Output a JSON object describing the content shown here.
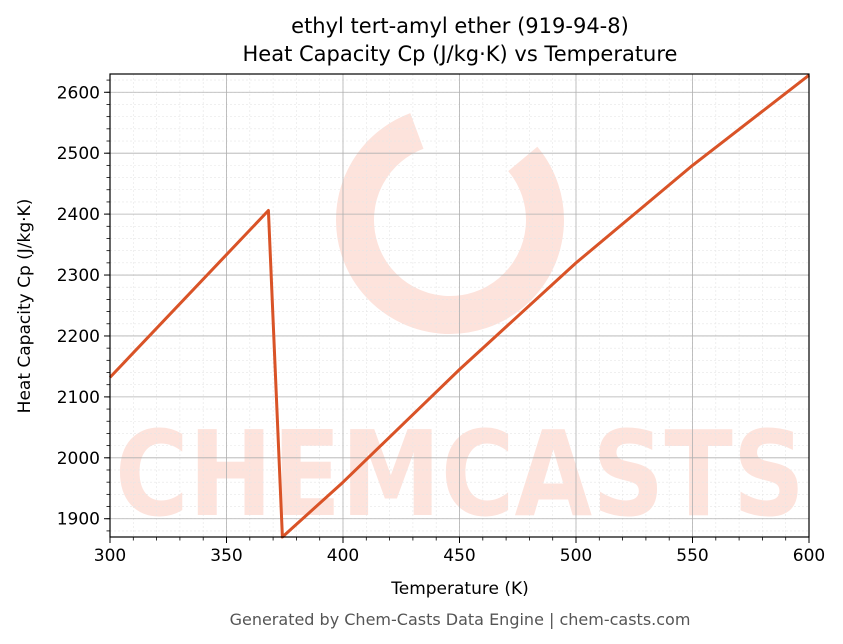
{
  "chart_data": {
    "type": "line",
    "title_lines": [
      "ethyl tert-amyl ether (919-94-8)",
      "Heat Capacity Cp (J/kg·K) vs Temperature"
    ],
    "xlabel": "Temperature (K)",
    "ylabel": "Heat Capacity Cp (J/kg·K)",
    "xlim": [
      300,
      600
    ],
    "ylim": [
      1870,
      2630
    ],
    "xticks": [
      300,
      350,
      400,
      450,
      500,
      550,
      600
    ],
    "yticks": [
      1900,
      2000,
      2100,
      2200,
      2300,
      2400,
      2500,
      2600
    ],
    "grid": true,
    "series": [
      {
        "color": "#d95327",
        "points": [
          [
            300,
            2132
          ],
          [
            368,
            2406
          ],
          [
            374,
            1870
          ],
          [
            400,
            1960
          ],
          [
            450,
            2145
          ],
          [
            500,
            2320
          ],
          [
            550,
            2480
          ],
          [
            600,
            2628
          ]
        ]
      }
    ]
  },
  "watermark": {
    "text": "CHEMCASTS",
    "color": "#fde3dc"
  },
  "footer": "Generated by Chem-Casts Data Engine | chem-casts.com"
}
